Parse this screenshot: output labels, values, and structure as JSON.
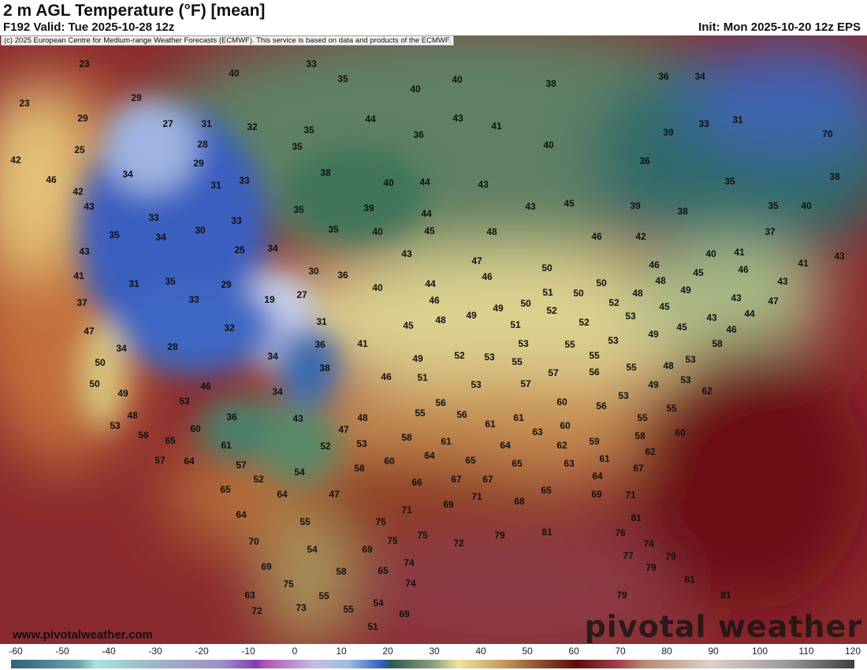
{
  "header": {
    "title": "2 m AGL Temperature (°F) [mean]",
    "valid": "F192 Valid: Tue 2025-10-28 12z",
    "init": "Init: Mon 2025-10-20 12z EPS"
  },
  "credit": "(c) 2025 European Centre for Medium-range Weather Forecasts (ECMWF). This service is based on data and products of the ECMWF.",
  "footer": {
    "site": "www.pivotalweather.com",
    "brand": "pivotal weather"
  },
  "colorbar": {
    "ticks": [
      "-60",
      "-50",
      "-40",
      "-30",
      "-20",
      "-10",
      "0",
      "10",
      "20",
      "30",
      "40",
      "50",
      "60",
      "70",
      "80",
      "90",
      "100",
      "110",
      "120"
    ]
  },
  "temperatures": [
    "23",
    "23",
    "29",
    "29",
    "27",
    "31",
    "32",
    "28",
    "25",
    "29",
    "34",
    "42",
    "46",
    "42",
    "31",
    "33",
    "33",
    "30",
    "33",
    "35",
    "34",
    "43",
    "43",
    "25",
    "34",
    "41",
    "31",
    "35",
    "29",
    "30",
    "36",
    "19",
    "27",
    "33",
    "37",
    "47",
    "32",
    "31",
    "34",
    "28",
    "36",
    "41",
    "34",
    "38",
    "50",
    "50",
    "49",
    "46",
    "34",
    "53",
    "48",
    "53",
    "36",
    "56",
    "65",
    "60",
    "61",
    "43",
    "47",
    "48",
    "52",
    "53",
    "57",
    "64",
    "57",
    "52",
    "54",
    "58",
    "60",
    "64",
    "58",
    "61",
    "55",
    "56",
    "56",
    "65",
    "66",
    "67",
    "67",
    "64",
    "65",
    "63",
    "62",
    "63",
    "60",
    "59",
    "61",
    "64",
    "58",
    "62",
    "67",
    "55",
    "60",
    "55",
    "56",
    "53",
    "60",
    "61",
    "61",
    "57",
    "57",
    "56",
    "55",
    "49",
    "48",
    "53",
    "62",
    "53",
    "58",
    "49",
    "45",
    "43",
    "46",
    "44",
    "47",
    "43",
    "48",
    "49",
    "45",
    "53",
    "52",
    "48",
    "46",
    "45",
    "40",
    "41",
    "46",
    "43",
    "41",
    "43",
    "37",
    "35",
    "40",
    "38",
    "35",
    "38",
    "39",
    "42",
    "46",
    "45",
    "43",
    "48",
    "47",
    "46",
    "50",
    "50",
    "51",
    "50",
    "52",
    "50",
    "49",
    "51",
    "52",
    "55",
    "53",
    "55",
    "53",
    "55",
    "53",
    "52",
    "49",
    "51",
    "53",
    "46",
    "45",
    "48",
    "49",
    "46",
    "44",
    "40",
    "43",
    "45",
    "44",
    "40",
    "39",
    "35",
    "35",
    "40",
    "44",
    "43",
    "40",
    "41",
    "43",
    "40",
    "40",
    "44",
    "36",
    "35",
    "35",
    "38",
    "35",
    "33",
    "40",
    "38",
    "36",
    "39",
    "36",
    "34",
    "33",
    "31",
    "70",
    "71",
    "69",
    "71",
    "68",
    "65",
    "69",
    "71",
    "81",
    "76",
    "74",
    "77",
    "79",
    "79",
    "81",
    "81",
    "79",
    "79",
    "81",
    "72",
    "75",
    "75",
    "75",
    "74",
    "74",
    "69",
    "69",
    "65",
    "58",
    "54",
    "55",
    "51",
    "55",
    "54",
    "55",
    "47",
    "64",
    "65",
    "64",
    "70",
    "69",
    "75",
    "73",
    "72",
    "63"
  ]
}
